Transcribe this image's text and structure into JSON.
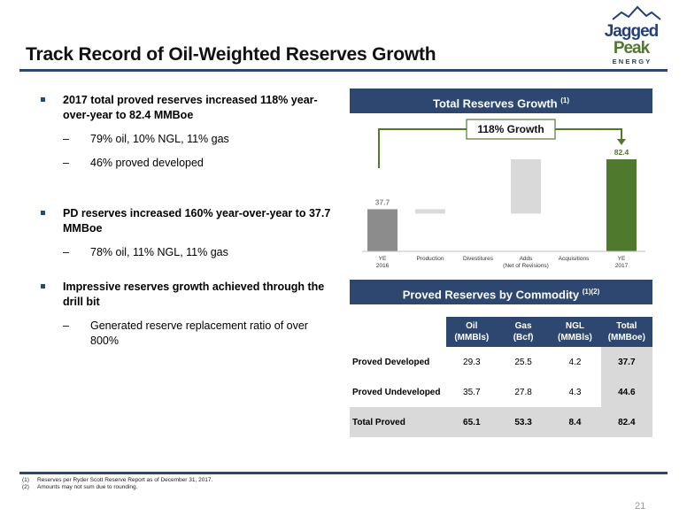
{
  "title": "Track Record of Oil-Weighted Reserves Growth",
  "logo": {
    "line1": "Jagged",
    "line2": "Peak",
    "line3": "ENERGY"
  },
  "bullets": [
    {
      "text": "2017 total proved reserves increased 118% year-over-year to 82.4 MMBoe",
      "subs": [
        "79% oil, 10% NGL, 11% gas",
        "46% proved developed"
      ]
    },
    {
      "text": "PD reserves increased 160% year-over-year to 37.7 MMBoe",
      "subs": [
        "78% oil, 11% NGL, 11% gas"
      ]
    },
    {
      "text": "Impressive reserves growth achieved through the drill bit",
      "subs": [
        "Generated reserve replacement ratio of over 800%"
      ]
    }
  ],
  "dash": "–",
  "chart_header": {
    "text": "Total Reserves Growth",
    "sup": "(1)"
  },
  "chart_data": {
    "type": "bar",
    "categories": [
      "YE\n2016",
      "Production",
      "Divestitures",
      "Adds\n(Net of Revisions)",
      "Acquisitions",
      "YE\n2017"
    ],
    "bars": [
      {
        "category": "YE 2016",
        "start": 0,
        "end": 37.7,
        "label": "37.7",
        "color": "#8c8c8c"
      },
      {
        "category": "Production",
        "start": 33.8,
        "end": 37.7,
        "label": "",
        "color": "#d9d9d9"
      },
      {
        "category": "Divestitures",
        "start": 33.8,
        "end": 33.8,
        "label": "",
        "color": "#d9d9d9"
      },
      {
        "category": "Adds (Net of Revisions)",
        "start": 33.8,
        "end": 82.4,
        "label": "",
        "color": "#d9d9d9"
      },
      {
        "category": "Acquisitions",
        "start": 82.4,
        "end": 82.4,
        "label": "",
        "color": "#d9d9d9"
      },
      {
        "category": "YE 2017",
        "start": 0,
        "end": 82.4,
        "label": "82.4",
        "color": "#4f7a2e"
      }
    ],
    "ylim": [
      0,
      82.4
    ],
    "annotation": "118% Growth",
    "accent_color": "#4f7a2e",
    "grid": false
  },
  "table_header": {
    "text": "Proved Reserves by Commodity",
    "sup": "(1)(2)"
  },
  "table": {
    "columns": [
      {
        "line1": "Oil",
        "line2": "(MMBls)"
      },
      {
        "line1": "Gas",
        "line2": "(Bcf)"
      },
      {
        "line1": "NGL",
        "line2": "(MMBls)"
      },
      {
        "line1": "Total",
        "line2": "(MMBoe)"
      }
    ],
    "rows": [
      {
        "label": "Proved Developed",
        "oil": "29.3",
        "gas": "25.5",
        "ngl": "4.2",
        "total": "37.7"
      },
      {
        "label": "Proved Undeveloped",
        "oil": "35.7",
        "gas": "27.8",
        "ngl": "4.3",
        "total": "44.6"
      },
      {
        "label": "Total Proved",
        "oil": "65.1",
        "gas": "53.3",
        "ngl": "8.4",
        "total": "82.4"
      }
    ]
  },
  "footnotes": [
    {
      "num": "(1)",
      "text": "Reserves per Ryder Scott Reserve Report as of December 31, 2017."
    },
    {
      "num": "(2)",
      "text": "Amounts may not sum due to rounding."
    }
  ],
  "page_number": "21",
  "colors": {
    "navy": "#2d4770",
    "green": "#4f7a2e",
    "gray": "#8c8c8c",
    "lightgray": "#d9d9d9",
    "logo_blue": "#233f7a"
  }
}
